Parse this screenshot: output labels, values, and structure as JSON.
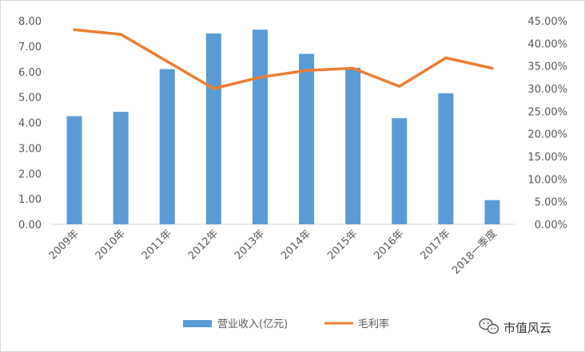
{
  "chart_data": {
    "type": "bar+line",
    "categories": [
      "2009年",
      "2010年",
      "2011年",
      "2012年",
      "2013年",
      "2014年",
      "2015年",
      "2016年",
      "2017年",
      "2018一季度"
    ],
    "series": [
      {
        "name": "营业收入(亿元)",
        "type": "bar",
        "axis": "left",
        "values": [
          4.25,
          4.42,
          6.1,
          7.5,
          7.65,
          6.7,
          6.15,
          4.17,
          5.15,
          0.95
        ]
      },
      {
        "name": "毛利率",
        "type": "line",
        "axis": "right",
        "values": [
          43.0,
          42.0,
          36.0,
          30.0,
          32.5,
          34.0,
          34.5,
          30.5,
          36.8,
          34.5
        ]
      }
    ],
    "y_left": {
      "ylim": [
        0,
        8
      ],
      "ticks": [
        "0.00",
        "1.00",
        "2.00",
        "3.00",
        "4.00",
        "5.00",
        "6.00",
        "7.00",
        "8.00"
      ]
    },
    "y_right": {
      "ylim": [
        0,
        45
      ],
      "ticks": [
        "0.00%",
        "5.00%",
        "10.00%",
        "15.00%",
        "20.00%",
        "25.00%",
        "30.00%",
        "35.00%",
        "40.00%",
        "45.00%"
      ]
    },
    "colors": {
      "bar": "#5b9bd5",
      "line": "#ed7d31"
    },
    "legend": {
      "placement": "bottom"
    },
    "grid": false
  },
  "watermark": {
    "text": "市值风云",
    "icon": "wechat-icon"
  }
}
